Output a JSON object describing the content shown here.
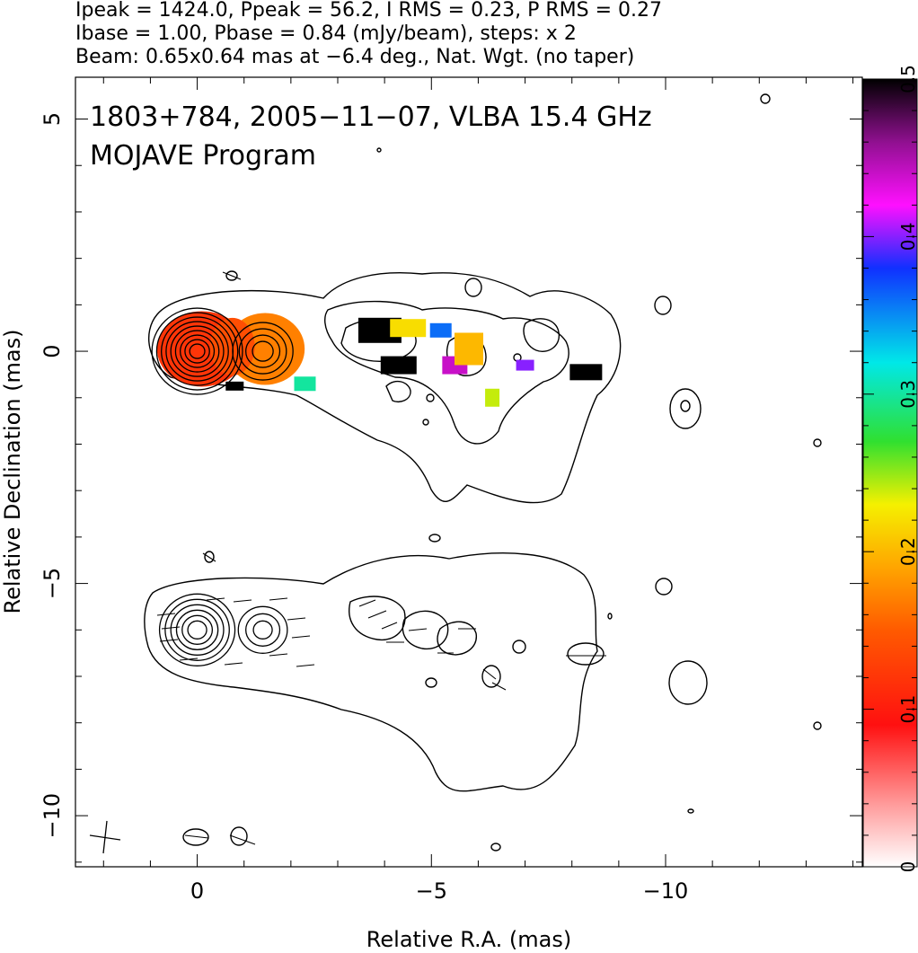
{
  "header": {
    "line1": "Ipeak = 1424.0, Ppeak = 56.2, I RMS = 0.23, P RMS = 0.27",
    "line2": "Ibase = 1.00, Pbase = 0.84 (mJy/beam), steps: x 2",
    "line3": "Beam: 0.65x0.64 mas at −6.4 deg., Nat. Wgt. (no taper)"
  },
  "chart_data": {
    "type": "heatmap",
    "title": "1803+784, 2005−11−07, VLBA 15.4 GHz",
    "subtitle": "MOJAVE Program",
    "xlabel": "Relative R.A. (mas)",
    "ylabel": "Relative Declination (mas)",
    "xlim": [
      2.6,
      -14.2
    ],
    "ylim": [
      -11.1,
      5.9
    ],
    "x_ticks": [
      0,
      -5,
      -10
    ],
    "x_tick_labels": [
      "0",
      "−5",
      "−10"
    ],
    "y_ticks": [
      5,
      0,
      -5,
      -10
    ],
    "y_tick_labels": [
      "5",
      "0",
      "−5",
      "−10"
    ],
    "colorbar": {
      "range": [
        0,
        0.5
      ],
      "ticks": [
        0,
        0.1,
        0.2,
        0.3,
        0.4,
        0.5
      ],
      "tick_labels": [
        "0",
        "0.1",
        "0.2",
        "0.3",
        "0.4",
        "0.5"
      ]
    },
    "upper_core": {
      "x": 0,
      "y": 0,
      "contour_rings": 9
    },
    "upper_knot": {
      "x": -1.4,
      "y": 0,
      "contour_rings": 4
    },
    "lower_core": {
      "x": 0,
      "y": -6.0,
      "contour_rings": 6
    },
    "lower_knot": {
      "x": -1.4,
      "y": -6.0,
      "contour_rings": 3
    },
    "fractional_pol_patches": [
      {
        "x": -0.4,
        "y": 0.0,
        "value": 0.12
      },
      {
        "x": -1.5,
        "y": 0.0,
        "value": 0.16
      },
      {
        "x": -0.8,
        "y": -0.75,
        "value": 0.5
      },
      {
        "x": -2.3,
        "y": -0.7,
        "value": 0.3
      },
      {
        "x": -3.9,
        "y": 0.45,
        "value": 0.5
      },
      {
        "x": -4.5,
        "y": 0.5,
        "value": 0.22
      },
      {
        "x": -4.3,
        "y": -0.3,
        "value": 0.5
      },
      {
        "x": -5.2,
        "y": 0.45,
        "value": 0.36
      },
      {
        "x": -5.5,
        "y": -0.3,
        "value": 0.44
      },
      {
        "x": -5.8,
        "y": 0.05,
        "value": 0.2
      },
      {
        "x": -6.3,
        "y": -1.0,
        "value": 0.24
      },
      {
        "x": -7.0,
        "y": -0.3,
        "value": 0.4
      },
      {
        "x": -8.3,
        "y": -0.45,
        "value": 0.5
      }
    ]
  }
}
